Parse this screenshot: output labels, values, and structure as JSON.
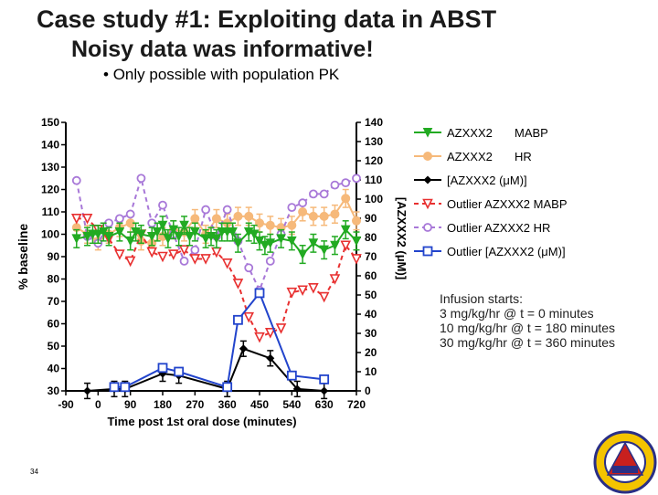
{
  "slide": {
    "title": "Case study #1: Exploiting data in ABST",
    "subtitle": "Noisy data was informative!",
    "bullet": "Only possible with population PK",
    "page_number": "34"
  },
  "chart_data": {
    "type": "line",
    "xlabel": "Time post 1st oral dose (minutes)",
    "ylabel_left": "% baseline",
    "ylabel_right": "[AZXXX2 (μM)]",
    "x_ticks": [
      -90,
      0,
      90,
      180,
      270,
      360,
      450,
      540,
      630,
      720
    ],
    "x_tick_labels": [
      "-90",
      "0",
      "90",
      "180",
      "270",
      "360",
      "450",
      "540",
      "630",
      "720"
    ],
    "xlim": [
      -90,
      720
    ],
    "ylim_left": [
      30,
      150
    ],
    "y_ticks_left": [
      30,
      40,
      50,
      60,
      70,
      80,
      90,
      100,
      110,
      120,
      130,
      140,
      150
    ],
    "ylim_right": [
      0,
      140
    ],
    "y_ticks_right": [
      0,
      10,
      20,
      30,
      40,
      50,
      60,
      70,
      80,
      90,
      100,
      110,
      120,
      130,
      140
    ],
    "legend_placement": "right",
    "series": [
      {
        "name": "AZXXX2",
        "name2": "MABP",
        "axis": "left",
        "color": "#22aa22",
        "style": "solid",
        "marker": "tri-down-filled",
        "error": 4,
        "points": [
          [
            -60,
            98
          ],
          [
            -30,
            99
          ],
          [
            -15,
            100
          ],
          [
            0,
            100
          ],
          [
            15,
            101
          ],
          [
            30,
            99
          ],
          [
            60,
            101
          ],
          [
            90,
            97
          ],
          [
            105,
            101
          ],
          [
            120,
            100
          ],
          [
            150,
            99
          ],
          [
            165,
            101
          ],
          [
            180,
            104
          ],
          [
            195,
            98
          ],
          [
            210,
            102
          ],
          [
            225,
            99
          ],
          [
            240,
            104
          ],
          [
            255,
            99
          ],
          [
            270,
            101
          ],
          [
            300,
            98
          ],
          [
            315,
            99
          ],
          [
            330,
            98
          ],
          [
            345,
            101
          ],
          [
            360,
            101
          ],
          [
            375,
            101
          ],
          [
            390,
            96
          ],
          [
            420,
            101
          ],
          [
            435,
            100
          ],
          [
            450,
            97
          ],
          [
            465,
            95
          ],
          [
            480,
            96
          ],
          [
            510,
            98
          ],
          [
            540,
            97
          ],
          [
            570,
            91
          ],
          [
            600,
            96
          ],
          [
            630,
            93
          ],
          [
            660,
            95
          ],
          [
            690,
            102
          ],
          [
            720,
            97
          ]
        ]
      },
      {
        "name": "AZXXX2",
        "name2": "HR",
        "axis": "left",
        "color": "#f6b97a",
        "style": "solid",
        "marker": "circle-filled",
        "error": 4,
        "points": [
          [
            -60,
            103
          ],
          [
            -30,
            100
          ],
          [
            0,
            97
          ],
          [
            30,
            100
          ],
          [
            60,
            103
          ],
          [
            90,
            105
          ],
          [
            120,
            97
          ],
          [
            150,
            96
          ],
          [
            180,
            99
          ],
          [
            210,
            102
          ],
          [
            240,
            101
          ],
          [
            270,
            107
          ],
          [
            300,
            100
          ],
          [
            330,
            107
          ],
          [
            360,
            105
          ],
          [
            390,
            108
          ],
          [
            420,
            108
          ],
          [
            450,
            105
          ],
          [
            480,
            104
          ],
          [
            510,
            103
          ],
          [
            540,
            104
          ],
          [
            570,
            110
          ],
          [
            600,
            108
          ],
          [
            630,
            108
          ],
          [
            660,
            109
          ],
          [
            690,
            116
          ],
          [
            720,
            106
          ]
        ]
      },
      {
        "name": "[AZXXX2 (μM)]",
        "axis": "right",
        "color": "#000000",
        "style": "solid",
        "marker": "diamond-filled",
        "error": 4,
        "points": [
          [
            -30,
            0
          ],
          [
            45,
            1
          ],
          [
            75,
            1
          ],
          [
            180,
            9
          ],
          [
            225,
            8
          ],
          [
            360,
            1
          ],
          [
            405,
            22
          ],
          [
            480,
            17
          ],
          [
            555,
            1
          ],
          [
            630,
            0
          ]
        ]
      },
      {
        "name": "Outlier AZXXX2  MABP",
        "axis": "left",
        "color": "#e83030",
        "style": "dashed",
        "marker": "tri-down-open",
        "points": [
          [
            -60,
            107
          ],
          [
            -30,
            107
          ],
          [
            0,
            102
          ],
          [
            30,
            98
          ],
          [
            60,
            91
          ],
          [
            90,
            88
          ],
          [
            120,
            100
          ],
          [
            150,
            92
          ],
          [
            180,
            90
          ],
          [
            210,
            91
          ],
          [
            240,
            93
          ],
          [
            270,
            89
          ],
          [
            300,
            89
          ],
          [
            330,
            92
          ],
          [
            360,
            87
          ],
          [
            390,
            78
          ],
          [
            420,
            63
          ],
          [
            450,
            54
          ],
          [
            480,
            56
          ],
          [
            510,
            58
          ],
          [
            540,
            74
          ],
          [
            570,
            75
          ],
          [
            600,
            76
          ],
          [
            630,
            72
          ],
          [
            660,
            80
          ],
          [
            690,
            95
          ],
          [
            720,
            89
          ]
        ]
      },
      {
        "name": "Outlier AZXXX2  HR",
        "axis": "left",
        "color": "#a878d8",
        "style": "dashed",
        "marker": "circle-open",
        "points": [
          [
            -60,
            124
          ],
          [
            -30,
            99
          ],
          [
            0,
            96
          ],
          [
            30,
            105
          ],
          [
            60,
            107
          ],
          [
            90,
            109
          ],
          [
            120,
            125
          ],
          [
            150,
            105
          ],
          [
            180,
            113
          ],
          [
            210,
            100
          ],
          [
            240,
            88
          ],
          [
            270,
            93
          ],
          [
            300,
            111
          ],
          [
            330,
            99
          ],
          [
            360,
            111
          ],
          [
            390,
            97
          ],
          [
            420,
            85
          ],
          [
            450,
            75
          ],
          [
            480,
            88
          ],
          [
            510,
            100
          ],
          [
            540,
            112
          ],
          [
            570,
            114
          ],
          [
            600,
            118
          ],
          [
            630,
            118
          ],
          [
            660,
            122
          ],
          [
            690,
            123
          ],
          [
            720,
            125
          ]
        ]
      },
      {
        "name": "Outlier [AZXXX2 (μM)]",
        "axis": "right",
        "color": "#2244cc",
        "style": "solid",
        "marker": "square-open",
        "points": [
          [
            45,
            2
          ],
          [
            75,
            2
          ],
          [
            180,
            12
          ],
          [
            225,
            10
          ],
          [
            360,
            2
          ],
          [
            390,
            37
          ],
          [
            450,
            51
          ],
          [
            540,
            8
          ],
          [
            630,
            6
          ]
        ]
      }
    ],
    "annotation": [
      "Infusion starts:",
      "3 mg/kg/hr @ t = 0 minutes",
      "10 mg/kg/hr @ t = 180 minutes",
      "30 mg/kg/hr @ t = 360 minutes"
    ]
  }
}
